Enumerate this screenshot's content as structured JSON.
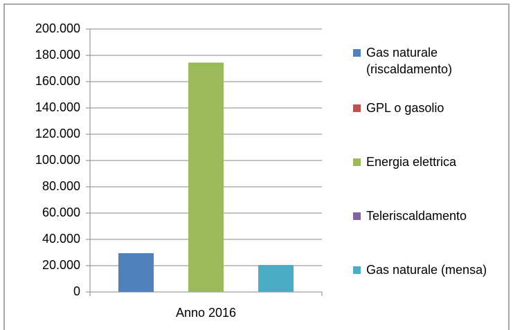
{
  "chart_data": {
    "type": "bar",
    "categories": [
      "Anno 2016"
    ],
    "series": [
      {
        "name": "Gas naturale (riscaldamento)",
        "color": "#4f81bd",
        "values": [
          29500
        ]
      },
      {
        "name": "GPL o gasolio",
        "color": "#c0504d",
        "values": [
          null
        ]
      },
      {
        "name": "Energia elettrica",
        "color": "#9bbb59",
        "values": [
          174500
        ]
      },
      {
        "name": "Teleriscaldamento",
        "color": "#8064a2",
        "values": [
          null
        ]
      },
      {
        "name": "Gas naturale (mensa)",
        "color": "#4bacc6",
        "values": [
          20500
        ]
      }
    ],
    "ylim": [
      0,
      200000
    ],
    "yticks": [
      0,
      {
        "value": 20000,
        "label": "20.000"
      },
      {
        "value": 40000,
        "label": "40.000"
      },
      {
        "value": 60000,
        "label": "60.000"
      },
      {
        "value": 80000,
        "label": "80.000"
      },
      {
        "value": 100000,
        "label": "100.000"
      },
      {
        "value": 120000,
        "label": "120.000"
      },
      {
        "value": 140000,
        "label": "140.000"
      },
      {
        "value": 160000,
        "label": "160.000"
      },
      {
        "value": 180000,
        "label": "180.000"
      },
      {
        "value": 200000,
        "label": "200.000"
      }
    ],
    "grid": true,
    "legend": "right"
  }
}
